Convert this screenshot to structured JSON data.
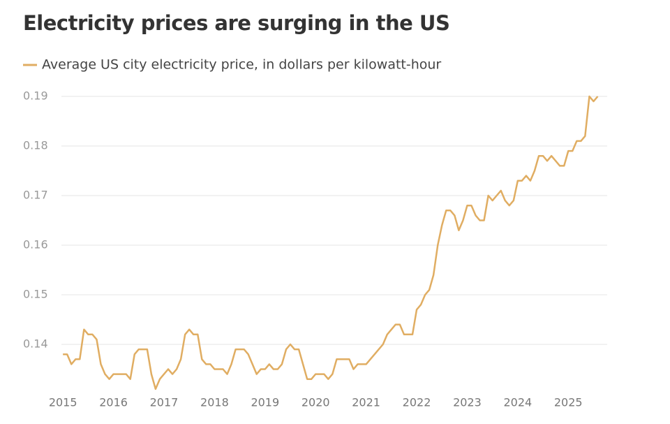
{
  "chart_data": {
    "type": "line",
    "title": "Electricity prices are surging in the US",
    "series": [
      {
        "name": "Average US city electricity price, in dollars per kilowatt-hour",
        "color": "#e0ad62",
        "values": [
          0.138,
          0.138,
          0.136,
          0.137,
          0.137,
          0.143,
          0.142,
          0.142,
          0.141,
          0.136,
          0.134,
          0.133,
          0.134,
          0.134,
          0.134,
          0.134,
          0.133,
          0.138,
          0.139,
          0.139,
          0.139,
          0.134,
          0.131,
          0.133,
          0.134,
          0.135,
          0.134,
          0.135,
          0.137,
          0.142,
          0.143,
          0.142,
          0.142,
          0.137,
          0.136,
          0.136,
          0.135,
          0.135,
          0.135,
          0.134,
          0.136,
          0.139,
          0.139,
          0.139,
          0.138,
          0.136,
          0.134,
          0.135,
          0.135,
          0.136,
          0.135,
          0.135,
          0.136,
          0.139,
          0.14,
          0.139,
          0.139,
          0.136,
          0.133,
          0.133,
          0.134,
          0.134,
          0.134,
          0.133,
          0.134,
          0.137,
          0.137,
          0.137,
          0.137,
          0.135,
          0.136,
          0.136,
          0.136,
          0.137,
          0.138,
          0.139,
          0.14,
          0.142,
          0.143,
          0.144,
          0.144,
          0.142,
          0.142,
          0.142,
          0.147,
          0.148,
          0.15,
          0.151,
          0.154,
          0.16,
          0.164,
          0.167,
          0.167,
          0.166,
          0.163,
          0.165,
          0.168,
          0.168,
          0.166,
          0.165,
          0.165,
          0.17,
          0.169,
          0.17,
          0.171,
          0.169,
          0.168,
          0.169,
          0.173,
          0.173,
          0.174,
          0.173,
          0.175,
          0.178,
          0.178,
          0.177,
          0.178,
          0.177,
          0.176,
          0.176,
          0.179,
          0.179,
          0.181,
          0.181,
          0.182,
          0.19,
          0.189,
          0.19
        ]
      }
    ],
    "x": [
      2015,
      2015.083,
      2015.167,
      2015.25,
      2015.333,
      2015.417,
      2015.5,
      2015.583,
      2015.667,
      2015.75,
      2015.833,
      2015.917,
      2016,
      2016.083,
      2016.167,
      2016.25,
      2016.333,
      2016.417,
      2016.5,
      2016.583,
      2016.667,
      2016.75,
      2016.833,
      2016.917,
      2017,
      2017.083,
      2017.167,
      2017.25,
      2017.333,
      2017.417,
      2017.5,
      2017.583,
      2017.667,
      2017.75,
      2017.833,
      2017.917,
      2018,
      2018.083,
      2018.167,
      2018.25,
      2018.333,
      2018.417,
      2018.5,
      2018.583,
      2018.667,
      2018.75,
      2018.833,
      2018.917,
      2019,
      2019.083,
      2019.167,
      2019.25,
      2019.333,
      2019.417,
      2019.5,
      2019.583,
      2019.667,
      2019.75,
      2019.833,
      2019.917,
      2020,
      2020.083,
      2020.167,
      2020.25,
      2020.333,
      2020.417,
      2020.5,
      2020.583,
      2020.667,
      2020.75,
      2020.833,
      2020.917,
      2021,
      2021.083,
      2021.167,
      2021.25,
      2021.333,
      2021.417,
      2021.5,
      2021.583,
      2021.667,
      2021.75,
      2021.833,
      2021.917,
      2022,
      2022.083,
      2022.167,
      2022.25,
      2022.333,
      2022.417,
      2022.5,
      2022.583,
      2022.667,
      2022.75,
      2022.833,
      2022.917,
      2023,
      2023.083,
      2023.167,
      2023.25,
      2023.333,
      2023.417,
      2023.5,
      2023.583,
      2023.667,
      2023.75,
      2023.833,
      2023.917,
      2024,
      2024.083,
      2024.167,
      2024.25,
      2024.333,
      2024.417,
      2024.5,
      2024.583,
      2024.667,
      2024.75,
      2024.833,
      2024.917,
      2025,
      2025.083,
      2025.167,
      2025.25,
      2025.333,
      2025.417,
      2025.5,
      2025.583
    ],
    "xlim": [
      2014.97,
      2025.77
    ],
    "xticks": [
      2015,
      2016,
      2017,
      2018,
      2019,
      2020,
      2021,
      2022,
      2023,
      2024,
      2025
    ],
    "ylim": [
      0.13,
      0.19
    ],
    "yticks": [
      0.14,
      0.15,
      0.16,
      0.17,
      0.18,
      0.19
    ],
    "grid": true
  }
}
